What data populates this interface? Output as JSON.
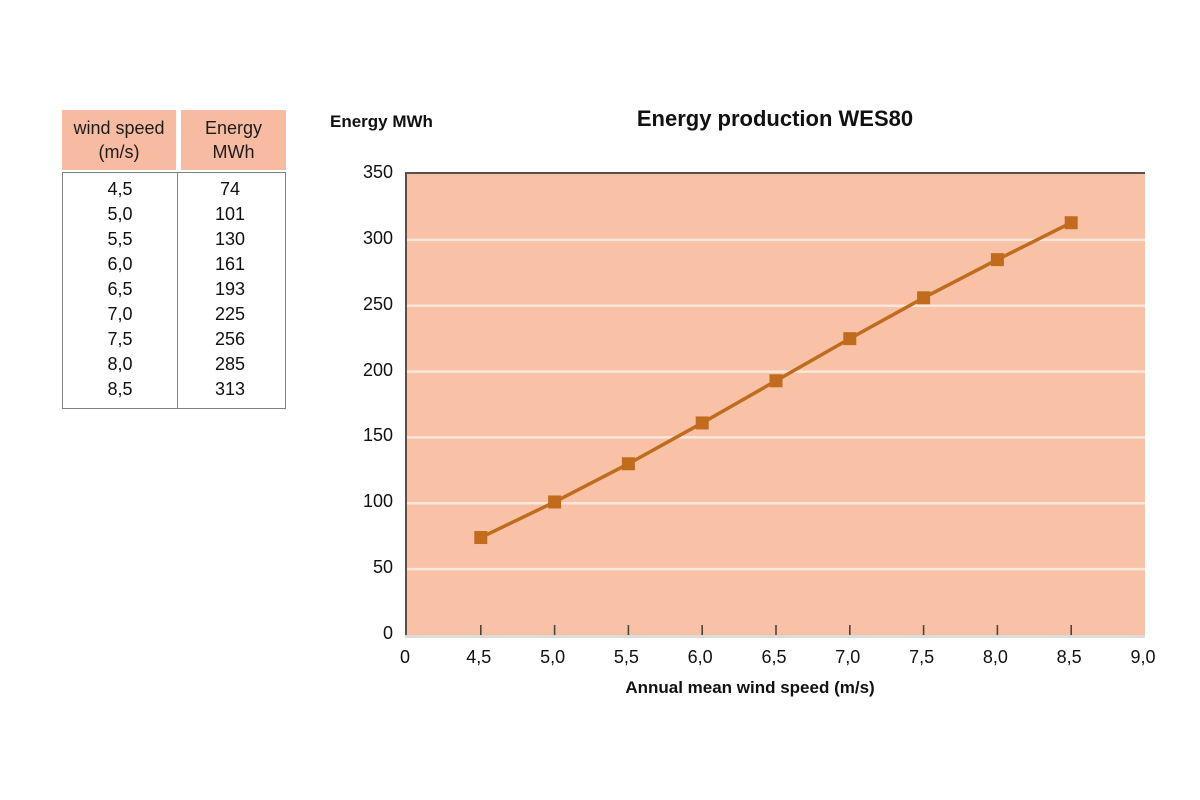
{
  "table": {
    "headers": [
      {
        "line1": "wind speed",
        "line2": "(m/s)"
      },
      {
        "line1": "Energy",
        "line2": "MWh"
      }
    ],
    "rows": [
      {
        "speed": "4,5",
        "energy": "74"
      },
      {
        "speed": "5,0",
        "energy": "101"
      },
      {
        "speed": "5,5",
        "energy": "130"
      },
      {
        "speed": "6,0",
        "energy": "161"
      },
      {
        "speed": "6,5",
        "energy": "193"
      },
      {
        "speed": "7,0",
        "energy": "225"
      },
      {
        "speed": "7,5",
        "energy": "256"
      },
      {
        "speed": "8,0",
        "energy": "285"
      },
      {
        "speed": "8,5",
        "energy": "313"
      }
    ]
  },
  "chart_data": {
    "type": "line",
    "title": "Energy production WES80",
    "ylabel": "Energy MWh",
    "xlabel": "Annual mean wind speed (m/s)",
    "x": [
      4.5,
      5.0,
      5.5,
      6.0,
      6.5,
      7.0,
      7.5,
      8.0,
      8.5
    ],
    "values": [
      74,
      101,
      130,
      161,
      193,
      225,
      256,
      285,
      313
    ],
    "x_tick_labels": [
      "0",
      "4,5",
      "5,0",
      "5,5",
      "6,0",
      "6,5",
      "7,0",
      "7,5",
      "8,0",
      "8,5",
      "9,0"
    ],
    "y_ticks": [
      0,
      50,
      100,
      150,
      200,
      250,
      300,
      350
    ],
    "ylim": [
      0,
      350
    ],
    "grid": "horizontal",
    "legend": "none",
    "colors": {
      "series": "#c16c1c",
      "plot_background": "#f9c1a6",
      "gridline": "#f8e7da",
      "axis": "#5a5148",
      "text": "#111111"
    }
  }
}
